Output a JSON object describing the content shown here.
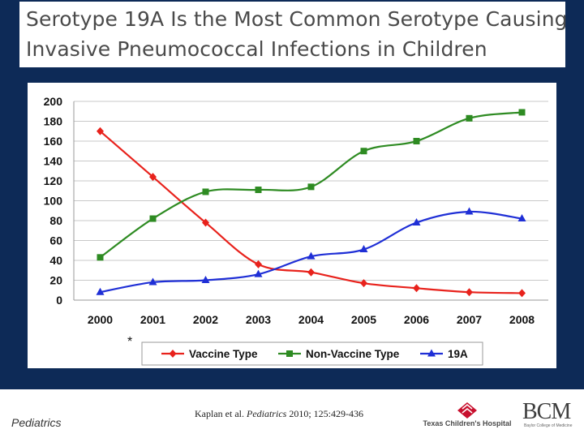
{
  "slide": {
    "title_line1": "Serotype 19A Is the Most Common Serotype Causing",
    "title_line2": "Invasive Pneumococcal Infections in Children",
    "asterisk": "*",
    "footer_label": "Pediatrics",
    "citation_authors": "Kaplan et al. ",
    "citation_journal": "Pediatrics",
    "citation_rest": " 2010; 125:429-436",
    "logo_tch": "Texas Children's Hospital",
    "logo_bcm": "BCM",
    "logo_bcm_sub": "Baylor College of Medicine"
  },
  "colors": {
    "navy": "#0d2a57",
    "vaccine": "#e8221c",
    "nonvaccine": "#2e8b22",
    "serotype19a": "#1f2fd6"
  },
  "chart_data": {
    "type": "line",
    "categories": [
      "2000",
      "2001",
      "2002",
      "2003",
      "2004",
      "2005",
      "2006",
      "2007",
      "2008"
    ],
    "ylim": [
      0,
      200
    ],
    "yticks": [
      0,
      20,
      40,
      60,
      80,
      100,
      120,
      140,
      160,
      180,
      200
    ],
    "grid": true,
    "legend": "bottom",
    "series": [
      {
        "name": "Vaccine Type",
        "color": "#e8221c",
        "marker": "diamond",
        "values": [
          170,
          124,
          78,
          36,
          28,
          17,
          12,
          8,
          7
        ]
      },
      {
        "name": "Non-Vaccine Type",
        "color": "#2e8b22",
        "marker": "square",
        "values": [
          43,
          82,
          109,
          111,
          114,
          150,
          160,
          183,
          189
        ]
      },
      {
        "name": "19A",
        "color": "#1f2fd6",
        "marker": "triangle",
        "values": [
          8,
          18,
          20,
          26,
          44,
          51,
          78,
          89,
          82
        ]
      }
    ]
  }
}
